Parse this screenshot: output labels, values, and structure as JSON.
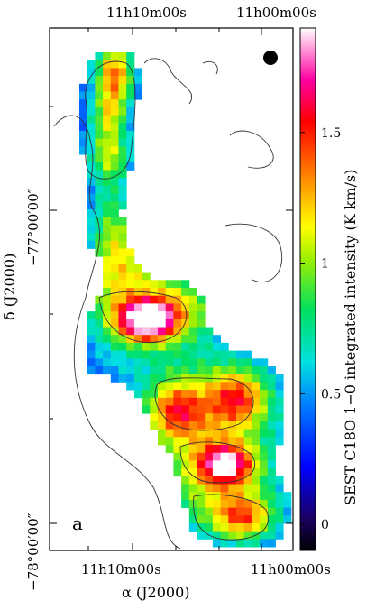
{
  "chart_data": {
    "type": "heatmap",
    "panel_label": "a",
    "xlabel": "α (J2000)",
    "ylabel": "δ (J2000)",
    "x_ticks_top": [
      "11h10m00s",
      "11h00m00s"
    ],
    "x_ticks_bottom": [
      "11h10m00s",
      "11h00m00s"
    ],
    "y_ticks": [
      "−77°00′00″",
      "−78°00′00″"
    ],
    "colorbar": {
      "label": "SEST C18O 1−0 integrated intensity (K km/s)",
      "ticks": [
        0,
        0.5,
        1,
        1.5
      ],
      "range": [
        -0.1,
        1.9
      ]
    },
    "beam_marker": "filled circle",
    "features": {
      "peak_intensity_approx": 1.85,
      "peak_location": "central clump near 11h08m, −77°37′",
      "secondary_peaks": [
        "northern clump near 11h08m, −76°38′",
        "southern clump near 11h04m, −77°48′"
      ]
    }
  },
  "colors": {
    "axis": "#000000",
    "contour": "#333333",
    "background": "#ffffff"
  }
}
